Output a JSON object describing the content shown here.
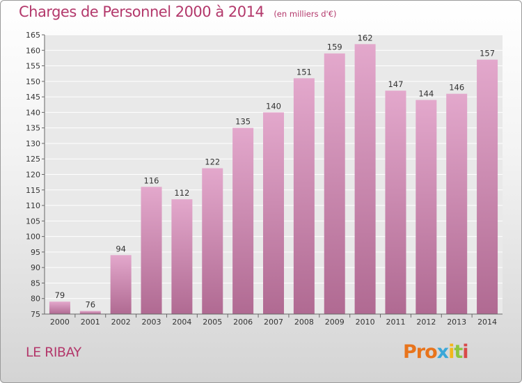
{
  "chart_data": {
    "type": "bar",
    "title": "Charges de Personnel 2000 à 2014",
    "subtitle": "(en milliers d'€)",
    "categories": [
      "2000",
      "2001",
      "2002",
      "2003",
      "2004",
      "2005",
      "2006",
      "2007",
      "2008",
      "2009",
      "2010",
      "2011",
      "2012",
      "2013",
      "2014"
    ],
    "values": [
      79,
      76,
      94,
      116,
      112,
      122,
      135,
      140,
      151,
      159,
      162,
      147,
      144,
      146,
      157
    ],
    "ylim": [
      75,
      165
    ],
    "yticks": [
      75,
      80,
      85,
      90,
      95,
      100,
      105,
      110,
      115,
      120,
      125,
      130,
      135,
      140,
      145,
      150,
      155,
      160,
      165
    ],
    "grid": true,
    "bar_color_top": "#e3a8cc",
    "bar_color_bottom": "#b06a92"
  },
  "footer": {
    "commune": "LE RIBAY",
    "logo": {
      "p1": "Pro",
      "p2": "x",
      "p3": "i",
      "p4": "t",
      "p5": "i"
    }
  }
}
